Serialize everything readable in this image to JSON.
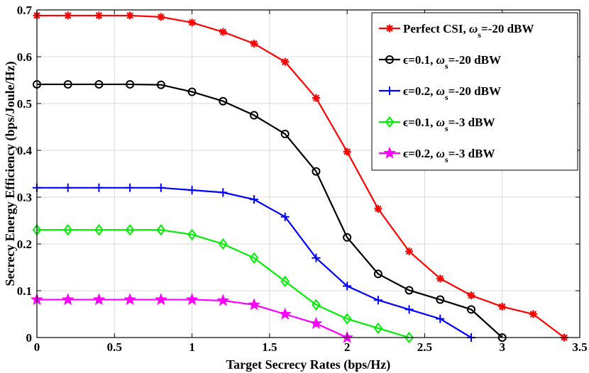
{
  "chart_data": {
    "type": "line",
    "title": "",
    "xlabel": "Target Secrecy Rates (bps/Hz)",
    "ylabel": "Secrecy Energy Efficiency (bps/Joule/Hz)",
    "xlim": [
      0,
      3.5
    ],
    "ylim": [
      0,
      0.7
    ],
    "xticks": [
      0,
      0.5,
      1,
      1.5,
      2,
      2.5,
      3,
      3.5
    ],
    "xtick_labels": [
      "0",
      "0.5",
      "1",
      "1.5",
      "2",
      "2.5",
      "3",
      "3.5"
    ],
    "yticks": [
      0,
      0.1,
      0.2,
      0.3,
      0.4,
      0.5,
      0.6,
      0.7
    ],
    "ytick_labels": [
      "0",
      "0.1",
      "0.2",
      "0.3",
      "0.4",
      "0.5",
      "0.6",
      "0.7"
    ],
    "grid": true,
    "legend_position": "top-right",
    "series": [
      {
        "name": "Perfect CSI, ωs=-20 dBW",
        "label_main": "Perfect CSI, ",
        "label_omega": "ω",
        "label_sub": "s",
        "label_tail": "=-20 dBW",
        "color": "#ff0000",
        "marker": "asterisk",
        "x": [
          0,
          0.2,
          0.4,
          0.6,
          0.8,
          1.0,
          1.2,
          1.4,
          1.6,
          1.8,
          2.0,
          2.2,
          2.4,
          2.6,
          2.8,
          3.0,
          3.2,
          3.4
        ],
        "y": [
          0.688,
          0.688,
          0.688,
          0.688,
          0.685,
          0.673,
          0.653,
          0.628,
          0.589,
          0.512,
          0.397,
          0.275,
          0.184,
          0.126,
          0.09,
          0.066,
          0.05,
          0.0
        ]
      },
      {
        "name": "ϵ=0.1, ωs=-20 dBW",
        "label_main": "ϵ=0.1, ",
        "label_omega": "ω",
        "label_sub": "s",
        "label_tail": "=-20 dBW",
        "color": "#000000",
        "marker": "circle",
        "x": [
          0,
          0.2,
          0.4,
          0.6,
          0.8,
          1.0,
          1.2,
          1.4,
          1.6,
          1.8,
          2.0,
          2.2,
          2.4,
          2.6,
          2.8,
          3.0
        ],
        "y": [
          0.541,
          0.541,
          0.541,
          0.541,
          0.54,
          0.525,
          0.505,
          0.475,
          0.435,
          0.355,
          0.214,
          0.136,
          0.101,
          0.081,
          0.06,
          0.0
        ]
      },
      {
        "name": "ϵ=0.2, ωs=-20 dBW",
        "label_main": "ϵ=0.2, ",
        "label_omega": "ω",
        "label_sub": "s",
        "label_tail": "=-20 dBW",
        "color": "#0000ff",
        "marker": "plus",
        "x": [
          0,
          0.2,
          0.4,
          0.6,
          0.8,
          1.0,
          1.2,
          1.4,
          1.6,
          1.8,
          2.0,
          2.2,
          2.4,
          2.6,
          2.8
        ],
        "y": [
          0.32,
          0.32,
          0.32,
          0.32,
          0.32,
          0.315,
          0.31,
          0.295,
          0.258,
          0.17,
          0.11,
          0.08,
          0.06,
          0.04,
          0.0
        ]
      },
      {
        "name": "ϵ=0.1, ωs=-3 dBW",
        "label_main": "ϵ=0.1, ",
        "label_omega": "ω",
        "label_sub": "s",
        "label_tail": "=-3 dBW",
        "color": "#00ee00",
        "marker": "diamond",
        "x": [
          0,
          0.2,
          0.4,
          0.6,
          0.8,
          1.0,
          1.2,
          1.4,
          1.6,
          1.8,
          2.0,
          2.2,
          2.4
        ],
        "y": [
          0.23,
          0.23,
          0.23,
          0.23,
          0.23,
          0.22,
          0.2,
          0.17,
          0.12,
          0.07,
          0.04,
          0.02,
          0.0
        ]
      },
      {
        "name": "ϵ=0.2, ωs=-3 dBW",
        "label_main": "ϵ=0.2, ",
        "label_omega": "ω",
        "label_sub": "s",
        "label_tail": "=-3 dBW",
        "color": "#ff00ff",
        "marker": "star",
        "x": [
          0,
          0.2,
          0.4,
          0.6,
          0.8,
          1.0,
          1.2,
          1.4,
          1.6,
          1.8,
          2.0
        ],
        "y": [
          0.081,
          0.081,
          0.081,
          0.081,
          0.081,
          0.081,
          0.079,
          0.07,
          0.05,
          0.03,
          0.0
        ]
      }
    ]
  }
}
